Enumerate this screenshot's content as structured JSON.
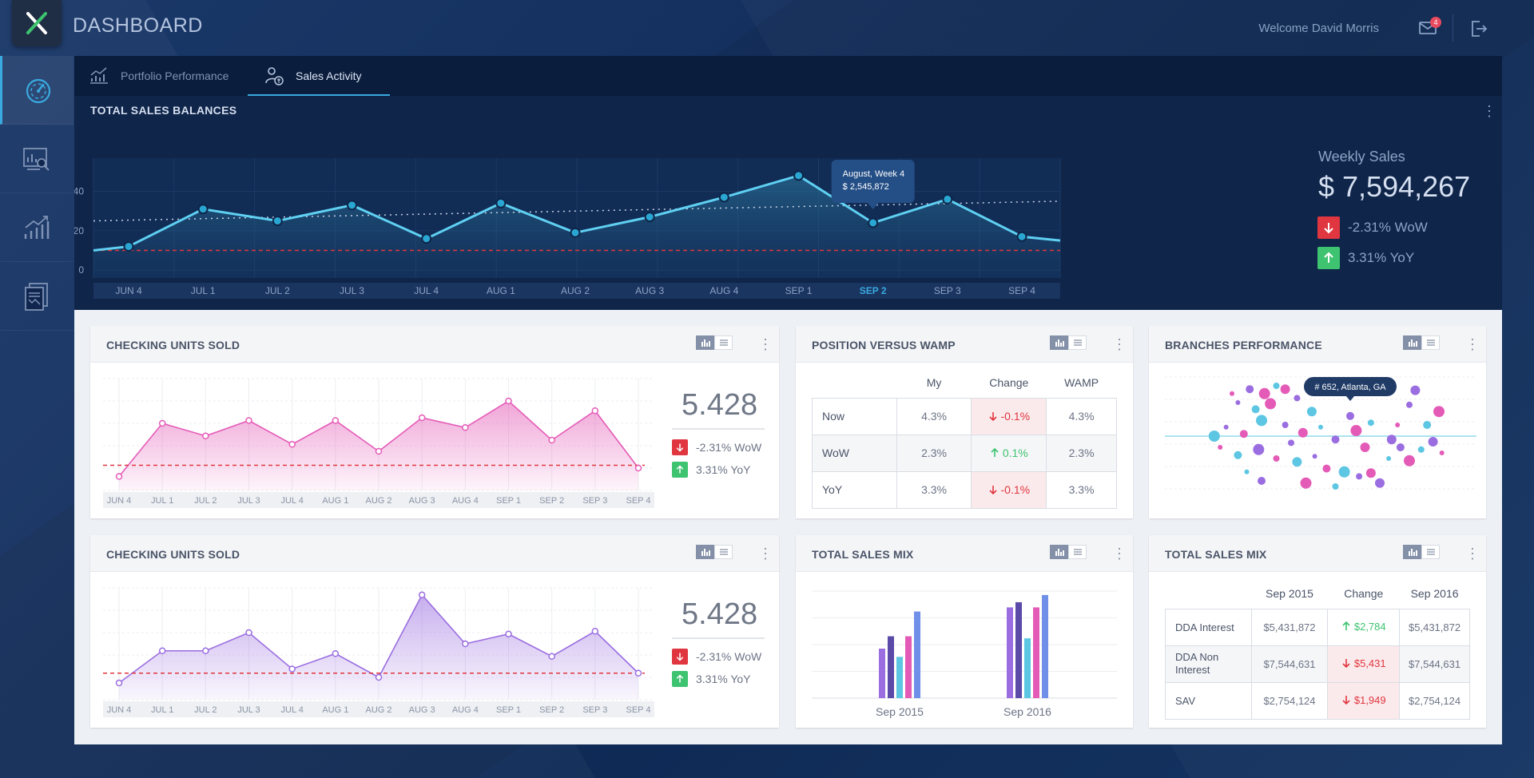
{
  "app": {
    "title": "DASHBOARD",
    "welcome": "Welcome David Morris",
    "mail_count": "4"
  },
  "colors": {
    "accent": "#3aa9e0",
    "down": "#e0363f",
    "up": "#3ec370",
    "pink": "#e45bb7",
    "purple": "#9a6de0"
  },
  "sidebar": {
    "items": [
      {
        "icon": "speedometer-icon",
        "active": true
      },
      {
        "icon": "analytics-search-icon",
        "active": false
      },
      {
        "icon": "growth-chart-icon",
        "active": false
      },
      {
        "icon": "reports-icon",
        "active": false
      }
    ]
  },
  "tabs": [
    {
      "label": "Portfolio Performance",
      "icon": "portfolio-chart-icon",
      "active": false
    },
    {
      "label": "Sales Activity",
      "icon": "sales-person-icon",
      "active": true
    }
  ],
  "total_sales": {
    "title": "TOTAL SALES BALANCES",
    "weekly_label": "Weekly Sales",
    "weekly_value": "$ 7,594,267",
    "wow": "-2.31% WoW",
    "yoy": "3.31% YoY",
    "tooltip_title": "August, Week 4",
    "tooltip_value": "$ 2,545,872"
  },
  "checking1": {
    "title": "CHECKING UNITS SOLD",
    "value": "5.428",
    "wow": "-2.31% WoW",
    "yoy": "3.31% YoY"
  },
  "checking2": {
    "title": "CHECKING UNITS SOLD",
    "value": "5.428",
    "wow": "-2.31% WoW",
    "yoy": "3.31% YoY"
  },
  "wamp": {
    "title": "POSITION VERSUS WAMP",
    "headers": [
      "",
      "My",
      "Change",
      "WAMP"
    ],
    "rows": [
      {
        "label": "Now",
        "my": "4.3%",
        "change": "-0.1%",
        "dir": "down",
        "wamp": "4.3%"
      },
      {
        "label": "WoW",
        "my": "2.3%",
        "change": "0.1%",
        "dir": "up",
        "wamp": "2.3%"
      },
      {
        "label": "YoY",
        "my": "3.3%",
        "change": "-0.1%",
        "dir": "down",
        "wamp": "3.3%"
      }
    ]
  },
  "branches": {
    "title": "BRANCHES PERFORMANCE",
    "tooltip": "# 652, Atlanta, GA"
  },
  "sales_mix_chart": {
    "title": "TOTAL SALES MIX",
    "groups": [
      "Sep 2015",
      "Sep 2016"
    ]
  },
  "sales_mix_table": {
    "title": "TOTAL SALES MIX",
    "headers": [
      "",
      "Sep 2015",
      "Change",
      "Sep 2016"
    ],
    "rows": [
      {
        "label": "DDA Interest",
        "a": "$5,431,872",
        "change": "$2,784",
        "dir": "up",
        "b": "$5,431,872"
      },
      {
        "label": "DDA Non Interest",
        "a": "$7,544,631",
        "change": "$5,431",
        "dir": "down",
        "b": "$7,544,631"
      },
      {
        "label": "SAV",
        "a": "$2,754,124",
        "change": "$1,949",
        "dir": "down",
        "b": "$2,754,124"
      }
    ]
  },
  "chart_data": [
    {
      "type": "line",
      "title": "TOTAL SALES BALANCES",
      "categories": [
        "JUN 4",
        "JUL 1",
        "JUL 2",
        "JUL 3",
        "JUL 4",
        "AUG 1",
        "AUG 2",
        "AUG 3",
        "AUG 4",
        "SEP 1",
        "SEP 2",
        "SEP 3",
        "SEP 4"
      ],
      "highlight_category": "SEP 2",
      "series": [
        {
          "values": [
            12,
            31,
            25,
            33,
            16,
            34,
            19,
            27,
            37,
            48,
            24,
            36,
            17
          ]
        }
      ],
      "trend": [
        25,
        35
      ],
      "reference": 10,
      "yticks": [
        0,
        20,
        40
      ],
      "ylim": [
        -4,
        52
      ]
    },
    {
      "type": "area",
      "title": "CHECKING UNITS SOLD",
      "categories": [
        "JUN 4",
        "JUL 1",
        "JUL 2",
        "JUL 3",
        "JUL 4",
        "AUG 1",
        "AUG 2",
        "AUG 3",
        "AUG 4",
        "SEP 1",
        "SEP 2",
        "SEP 3",
        "SEP 4"
      ],
      "series": [
        {
          "values": [
            10,
            48,
            39,
            50,
            33,
            50,
            28,
            52,
            45,
            64,
            36,
            57,
            16
          ]
        }
      ],
      "reference": 18,
      "ylim": [
        0,
        80
      ]
    },
    {
      "type": "area",
      "title": "CHECKING UNITS SOLD",
      "categories": [
        "JUN 4",
        "JUL 1",
        "JUL 2",
        "JUL 3",
        "JUL 4",
        "AUG 1",
        "AUG 2",
        "AUG 3",
        "AUG 4",
        "SEP 1",
        "SEP 2",
        "SEP 3",
        "SEP 4"
      ],
      "series": [
        {
          "values": [
            12,
            35,
            35,
            48,
            22,
            33,
            16,
            75,
            40,
            47,
            31,
            49,
            19
          ]
        }
      ],
      "reference": 19,
      "ylim": [
        0,
        80
      ]
    },
    {
      "type": "bar",
      "title": "TOTAL SALES MIX",
      "categories": [
        "Sep 2015",
        "Sep 2016"
      ],
      "series": [
        {
          "values": [
            48,
            88
          ],
          "color": "#9a6de0"
        },
        {
          "values": [
            60,
            93
          ],
          "color": "#5b4aa8"
        },
        {
          "values": [
            40,
            58
          ],
          "color": "#5cc6e3"
        },
        {
          "values": [
            60,
            88
          ],
          "color": "#e45bb7"
        },
        {
          "values": [
            84,
            100
          ],
          "color": "#6f8fe8"
        }
      ],
      "ylim": [
        0,
        110
      ]
    },
    {
      "type": "scatter",
      "title": "BRANCHES PERFORMANCE",
      "reference": 50,
      "xlim": [
        0,
        100
      ],
      "ylim": [
        0,
        100
      ],
      "points": [
        [
          20,
          88,
          "#e45bb7"
        ],
        [
          26,
          92,
          "#9a6de0"
        ],
        [
          31,
          88,
          "#e45bb7"
        ],
        [
          35,
          95,
          "#5cc6e3"
        ],
        [
          38,
          92,
          "#e45bb7"
        ],
        [
          22,
          80,
          "#9a6de0"
        ],
        [
          28,
          74,
          "#5cc6e3"
        ],
        [
          33,
          79,
          "#e45bb7"
        ],
        [
          42,
          84,
          "#9a6de0"
        ],
        [
          47,
          72,
          "#5cc6e3"
        ],
        [
          18,
          58,
          "#9a6de0"
        ],
        [
          24,
          52,
          "#e45bb7"
        ],
        [
          30,
          64,
          "#5cc6e3"
        ],
        [
          38,
          60,
          "#9a6de0"
        ],
        [
          44,
          53,
          "#e45bb7"
        ],
        [
          50,
          58,
          "#5cc6e3"
        ],
        [
          55,
          47,
          "#9a6de0"
        ],
        [
          62,
          55,
          "#e45bb7"
        ],
        [
          67,
          62,
          "#5cc6e3"
        ],
        [
          74,
          47,
          "#9a6de0"
        ],
        [
          16,
          40,
          "#e45bb7"
        ],
        [
          22,
          33,
          "#5cc6e3"
        ],
        [
          29,
          38,
          "#9a6de0"
        ],
        [
          35,
          30,
          "#e45bb7"
        ],
        [
          42,
          27,
          "#5cc6e3"
        ],
        [
          48,
          32,
          "#9a6de0"
        ],
        [
          52,
          21,
          "#e45bb7"
        ],
        [
          58,
          18,
          "#5cc6e3"
        ],
        [
          63,
          14,
          "#9a6de0"
        ],
        [
          67,
          17,
          "#e45bb7"
        ],
        [
          73,
          30,
          "#5cc6e3"
        ],
        [
          77,
          40,
          "#9a6de0"
        ],
        [
          80,
          28,
          "#e45bb7"
        ],
        [
          84,
          38,
          "#5cc6e3"
        ],
        [
          88,
          45,
          "#9a6de0"
        ],
        [
          91,
          35,
          "#e45bb7"
        ],
        [
          86,
          60,
          "#5cc6e3"
        ],
        [
          90,
          72,
          "#e45bb7"
        ],
        [
          80,
          78,
          "#9a6de0"
        ],
        [
          82,
          91,
          "#9a6de0"
        ],
        [
          25,
          18,
          "#5cc6e3"
        ],
        [
          30,
          10,
          "#9a6de0"
        ],
        [
          45,
          8,
          "#e45bb7"
        ],
        [
          55,
          5,
          "#5cc6e3"
        ],
        [
          70,
          8,
          "#9a6de0"
        ],
        [
          76,
          60,
          "#e45bb7"
        ],
        [
          60,
          68,
          "#9a6de0"
        ],
        [
          14,
          50,
          "#5cc6e3"
        ],
        [
          40,
          44,
          "#9a6de0"
        ],
        [
          65,
          40,
          "#e45bb7"
        ]
      ]
    }
  ]
}
